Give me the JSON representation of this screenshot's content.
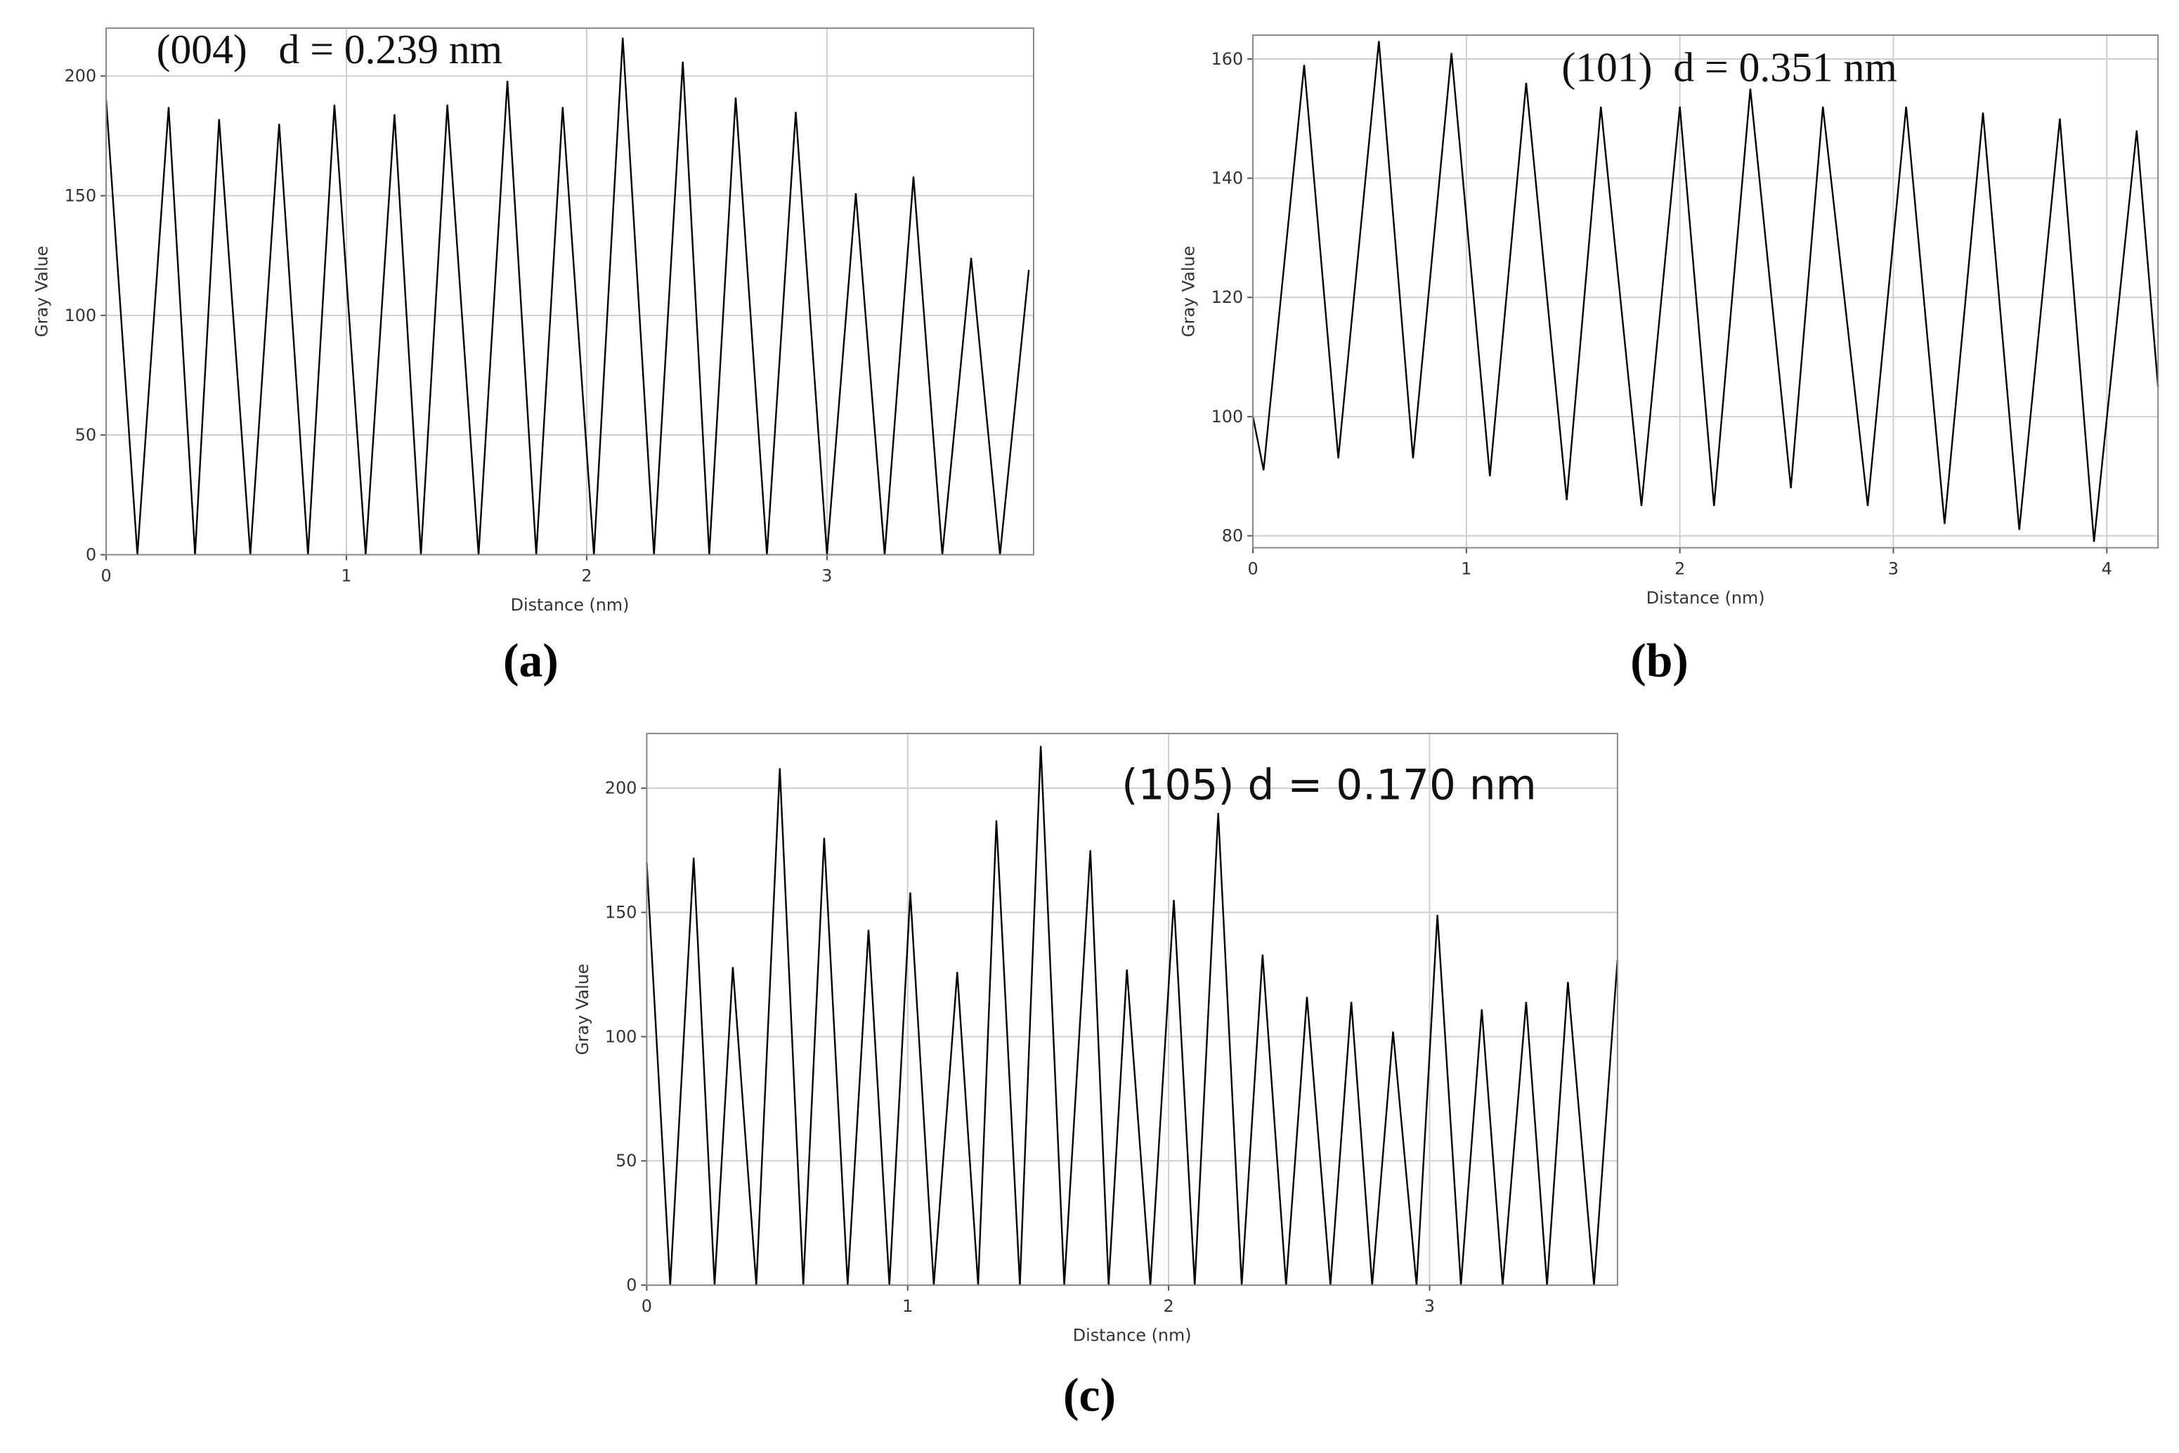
{
  "chart_data": [
    {
      "type": "line",
      "label": "(a)",
      "annotation": "(004)   d = 0.239 nm",
      "xlabel": "Distance (nm)",
      "ylabel": "Gray Value",
      "color": "#000000",
      "grid": true,
      "xlim": [
        0,
        3.86
      ],
      "ylim": [
        0,
        220
      ],
      "xticks": [
        0,
        1,
        2,
        3
      ],
      "yticks": [
        0,
        50,
        100,
        150,
        200
      ],
      "x": [
        0,
        0.13,
        0.26,
        0.37,
        0.47,
        0.6,
        0.72,
        0.84,
        0.95,
        1.08,
        1.2,
        1.31,
        1.42,
        1.55,
        1.67,
        1.79,
        1.9,
        2.03,
        2.15,
        2.28,
        2.4,
        2.51,
        2.62,
        2.75,
        2.87,
        3.0,
        3.12,
        3.24,
        3.36,
        3.48,
        3.6,
        3.72,
        3.84
      ],
      "values": [
        190,
        0,
        187,
        0,
        182,
        0,
        180,
        0,
        188,
        0,
        184,
        0,
        188,
        0,
        198,
        0,
        187,
        0,
        216,
        0,
        206,
        0,
        191,
        0,
        185,
        0,
        151,
        0,
        158,
        0,
        124,
        0,
        119
      ]
    },
    {
      "type": "line",
      "label": "(b)",
      "annotation": "(101)  d = 0.351 nm",
      "xlabel": "Distance (nm)",
      "ylabel": "Gray Value",
      "color": "#000000",
      "grid": true,
      "xlim": [
        0,
        4.24
      ],
      "ylim": [
        78,
        164
      ],
      "xticks": [
        0,
        1,
        2,
        3,
        4
      ],
      "yticks": [
        80,
        100,
        120,
        140,
        160
      ],
      "x": [
        0,
        0.05,
        0.24,
        0.4,
        0.59,
        0.75,
        0.93,
        1.11,
        1.28,
        1.47,
        1.63,
        1.82,
        2.0,
        2.16,
        2.33,
        2.52,
        2.67,
        2.88,
        3.06,
        3.24,
        3.42,
        3.59,
        3.78,
        3.94,
        4.14,
        4.24
      ],
      "values": [
        100,
        91,
        159,
        93,
        163,
        93,
        161,
        90,
        156,
        86,
        152,
        85,
        152,
        85,
        155,
        88,
        152,
        85,
        152,
        82,
        151,
        81,
        150,
        79,
        148,
        105
      ]
    },
    {
      "type": "line",
      "label": "(c)",
      "annotation": "(105) d = 0.170 nm",
      "xlabel": "Distance (nm)",
      "ylabel": "Gray Value",
      "color": "#000000",
      "grid": true,
      "xlim": [
        0,
        3.72
      ],
      "ylim": [
        0,
        222
      ],
      "xticks": [
        0,
        1,
        2,
        3
      ],
      "yticks": [
        0,
        50,
        100,
        150,
        200
      ],
      "x": [
        0,
        0.09,
        0.18,
        0.26,
        0.33,
        0.42,
        0.51,
        0.6,
        0.68,
        0.77,
        0.85,
        0.93,
        1.01,
        1.1,
        1.19,
        1.27,
        1.34,
        1.43,
        1.51,
        1.6,
        1.7,
        1.77,
        1.84,
        1.93,
        2.02,
        2.1,
        2.19,
        2.28,
        2.36,
        2.45,
        2.53,
        2.62,
        2.7,
        2.78,
        2.86,
        2.95,
        3.03,
        3.12,
        3.2,
        3.28,
        3.37,
        3.45,
        3.53,
        3.63,
        3.72
      ],
      "values": [
        170,
        0,
        172,
        0,
        128,
        0,
        208,
        0,
        180,
        0,
        143,
        0,
        158,
        0,
        126,
        0,
        187,
        0,
        217,
        0,
        175,
        0,
        127,
        0,
        155,
        0,
        190,
        0,
        133,
        0,
        116,
        0,
        114,
        0,
        102,
        0,
        149,
        0,
        111,
        0,
        114,
        0,
        122,
        0,
        131
      ]
    }
  ]
}
